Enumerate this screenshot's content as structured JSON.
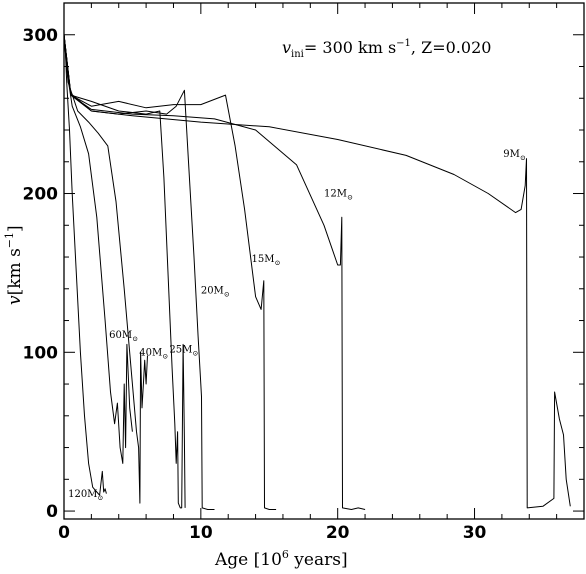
{
  "chart_data": {
    "type": "line",
    "title": "",
    "annotation_parts": {
      "v": "v",
      "sub": "ini",
      "eq": "= 300 km s",
      "exp": "−1",
      "z_part": ", Z=0.020"
    },
    "xlabel_parts": {
      "pre": "Age [10",
      "sup": "6",
      "post": " years]"
    },
    "ylabel_parts": {
      "v": "v",
      "pre": "[km s",
      "sup": "−1",
      "post": "]"
    },
    "xlim": [
      0,
      38
    ],
    "ylim": [
      -5,
      320
    ],
    "xticks": [
      0,
      10,
      20,
      30
    ],
    "xtick_labels": [
      "0",
      "10",
      "20",
      "30"
    ],
    "yticks": [
      0,
      100,
      200,
      300
    ],
    "ytick_labels": [
      "0",
      "100",
      "200",
      "300"
    ],
    "grid": false,
    "legend": "none",
    "series": [
      {
        "label": "120M",
        "label_sub": "⊙",
        "label_at": [
          0.3,
          9
        ],
        "points": [
          [
            0,
            300
          ],
          [
            0.1,
            290
          ],
          [
            0.2,
            270
          ],
          [
            0.4,
            240
          ],
          [
            0.6,
            200
          ],
          [
            0.9,
            150
          ],
          [
            1.2,
            100
          ],
          [
            1.5,
            60
          ],
          [
            1.8,
            30
          ],
          [
            2.1,
            15
          ],
          [
            2.4,
            12
          ],
          [
            2.6,
            10
          ],
          [
            2.8,
            25
          ],
          [
            2.9,
            12
          ],
          [
            3.0,
            14
          ],
          [
            3.1,
            11
          ]
        ]
      },
      {
        "label": "60M",
        "label_sub": "⊙",
        "label_at": [
          3.3,
          109
        ],
        "points": [
          [
            0,
            300
          ],
          [
            0.2,
            278
          ],
          [
            0.6,
            255
          ],
          [
            1.2,
            242
          ],
          [
            1.8,
            225
          ],
          [
            2.4,
            185
          ],
          [
            3.0,
            120
          ],
          [
            3.4,
            75
          ],
          [
            3.7,
            55
          ],
          [
            3.9,
            68
          ],
          [
            4.1,
            40
          ],
          [
            4.3,
            30
          ],
          [
            4.4,
            80
          ],
          [
            4.5,
            40
          ],
          [
            4.6,
            105
          ],
          [
            4.8,
            65
          ],
          [
            5.0,
            50
          ]
        ]
      },
      {
        "label": "40M",
        "label_sub": "⊙",
        "label_at": [
          5.5,
          98
        ],
        "points": [
          [
            0,
            300
          ],
          [
            0.3,
            270
          ],
          [
            1.0,
            252
          ],
          [
            1.8,
            245
          ],
          [
            2.5,
            238
          ],
          [
            3.2,
            230
          ],
          [
            3.8,
            195
          ],
          [
            4.4,
            140
          ],
          [
            5.0,
            80
          ],
          [
            5.3,
            50
          ],
          [
            5.45,
            40
          ],
          [
            5.55,
            5
          ],
          [
            5.6,
            100
          ],
          [
            5.7,
            65
          ],
          [
            5.8,
            80
          ],
          [
            5.9,
            95
          ],
          [
            6.0,
            80
          ],
          [
            6.1,
            98
          ]
        ]
      },
      {
        "label": "25M",
        "label_sub": "⊙",
        "label_at": [
          7.7,
          100
        ],
        "points": [
          [
            0,
            300
          ],
          [
            0.5,
            262
          ],
          [
            2,
            258
          ],
          [
            4,
            252
          ],
          [
            6,
            250
          ],
          [
            7.0,
            252
          ],
          [
            7.3,
            210
          ],
          [
            7.6,
            150
          ],
          [
            7.9,
            90
          ],
          [
            8.1,
            55
          ],
          [
            8.2,
            30
          ],
          [
            8.3,
            50
          ],
          [
            8.35,
            5
          ],
          [
            8.5,
            2
          ],
          [
            8.6,
            2
          ],
          [
            8.7,
            105
          ],
          [
            8.8,
            45
          ],
          [
            8.85,
            2
          ]
        ]
      },
      {
        "label": "20M",
        "label_sub": "⊙",
        "label_at": [
          10.0,
          137
        ],
        "points": [
          [
            0,
            300
          ],
          [
            0.5,
            263
          ],
          [
            2,
            252
          ],
          [
            4,
            250
          ],
          [
            6,
            252
          ],
          [
            7.5,
            250
          ],
          [
            8.2,
            255
          ],
          [
            8.8,
            265
          ],
          [
            9.1,
            220
          ],
          [
            9.5,
            160
          ],
          [
            9.8,
            110
          ],
          [
            10.0,
            80
          ],
          [
            10.05,
            72
          ],
          [
            10.1,
            2
          ],
          [
            10.5,
            1
          ],
          [
            11,
            1
          ]
        ]
      },
      {
        "label": "15M",
        "label_sub": "⊙",
        "label_at": [
          13.7,
          157
        ],
        "points": [
          [
            0,
            300
          ],
          [
            0.5,
            262
          ],
          [
            2,
            255
          ],
          [
            4,
            258
          ],
          [
            6,
            254
          ],
          [
            8,
            256
          ],
          [
            10,
            256
          ],
          [
            11.8,
            262
          ],
          [
            12.5,
            230
          ],
          [
            13.2,
            190
          ],
          [
            14.0,
            135
          ],
          [
            14.4,
            127
          ],
          [
            14.6,
            145
          ],
          [
            14.65,
            2
          ],
          [
            15,
            1
          ],
          [
            15.5,
            1
          ]
        ]
      },
      {
        "label": "12M",
        "label_sub": "⊙",
        "label_at": [
          19.0,
          198
        ],
        "points": [
          [
            0,
            300
          ],
          [
            0.5,
            262
          ],
          [
            2,
            253
          ],
          [
            5,
            250
          ],
          [
            8,
            249
          ],
          [
            11,
            247
          ],
          [
            14,
            240
          ],
          [
            17,
            218
          ],
          [
            19,
            180
          ],
          [
            20.0,
            155
          ],
          [
            20.2,
            155
          ],
          [
            20.3,
            185
          ],
          [
            20.35,
            2
          ],
          [
            21,
            1
          ],
          [
            21.5,
            2
          ],
          [
            22,
            1
          ]
        ]
      },
      {
        "label": "9M",
        "label_sub": "⊙",
        "label_at": [
          32.1,
          223
        ],
        "points": [
          [
            0,
            300
          ],
          [
            0.5,
            262
          ],
          [
            2,
            252
          ],
          [
            5,
            249
          ],
          [
            10,
            245
          ],
          [
            15,
            242
          ],
          [
            20,
            234
          ],
          [
            25,
            224
          ],
          [
            28.5,
            212
          ],
          [
            31,
            200
          ],
          [
            33.0,
            188
          ],
          [
            33.4,
            190
          ],
          [
            33.7,
            205
          ],
          [
            33.8,
            222
          ],
          [
            33.85,
            2
          ],
          [
            35,
            3
          ],
          [
            35.8,
            8
          ],
          [
            35.85,
            75
          ],
          [
            36.2,
            58
          ],
          [
            36.5,
            48
          ],
          [
            36.7,
            20
          ],
          [
            37,
            3
          ]
        ]
      }
    ]
  }
}
